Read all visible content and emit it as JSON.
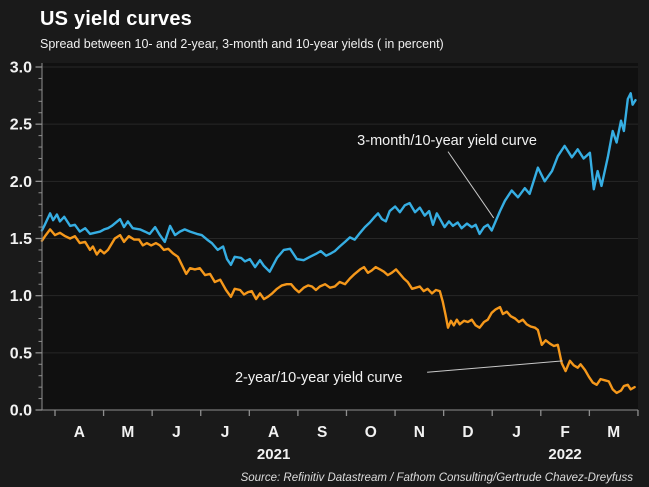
{
  "header": {
    "title": "US yield curves",
    "subtitle": "Spread between 10- and 2-year, 3-month and 10-year yields ( in percent)"
  },
  "source": "Source: Refinitiv Datastream / Fathom Consulting/Gertrude Chavez-Dreyfuss",
  "colors": {
    "background": "#1a1a1a",
    "plot_background": "#101010",
    "blue_line": "#36aee3",
    "orange_line": "#f5981b",
    "axis": "#8f8f8f",
    "grid": "#272727",
    "text": "#f2f2f2",
    "leader_line": "#c9c9c9"
  },
  "chart_data": {
    "type": "line",
    "title": "US yield curves",
    "subtitle": "Spread between 10- and 2-year, 3-month and 10-year yields ( in percent)",
    "ylabel": "percent",
    "ylim": [
      0.0,
      3.0
    ],
    "ytick_labels": [
      "0.0",
      "0.5",
      "1.0",
      "1.5",
      "2.0",
      "2.5",
      "3.0"
    ],
    "ytick_values": [
      0.0,
      0.5,
      1.0,
      1.5,
      2.0,
      2.5,
      3.0
    ],
    "grid": "horizontal-faint",
    "legend_position": "inline-annotations",
    "x_axis": {
      "note": "x unit = months since 2021-04-01, data spans late Mar 2021 to mid Mar 2022",
      "month_labels": [
        "A",
        "M",
        "J",
        "J",
        "A",
        "S",
        "O",
        "N",
        "D",
        "J",
        "F",
        "M"
      ],
      "month_label_positions": [
        0.5,
        1.5,
        2.5,
        3.5,
        4.5,
        5.5,
        6.5,
        7.5,
        8.5,
        9.5,
        10.5,
        11.5
      ],
      "year_labels": [
        {
          "text": "2021",
          "m": 4.5
        },
        {
          "text": "2022",
          "m": 10.5
        }
      ],
      "xlim": [
        -0.27,
        12
      ]
    },
    "series": [
      {
        "name": "3-month/10-year yield curve",
        "color": "#36aee3",
        "points": [
          [
            -0.27,
            1.57
          ],
          [
            -0.21,
            1.62
          ],
          [
            -0.1,
            1.72
          ],
          [
            -0.04,
            1.66
          ],
          [
            0.04,
            1.71
          ],
          [
            0.1,
            1.65
          ],
          [
            0.19,
            1.69
          ],
          [
            0.31,
            1.61
          ],
          [
            0.41,
            1.62
          ],
          [
            0.51,
            1.56
          ],
          [
            0.62,
            1.59
          ],
          [
            0.72,
            1.54
          ],
          [
            0.82,
            1.55
          ],
          [
            0.93,
            1.56
          ],
          [
            1.01,
            1.58
          ],
          [
            1.09,
            1.59
          ],
          [
            1.17,
            1.61
          ],
          [
            1.34,
            1.67
          ],
          [
            1.42,
            1.6
          ],
          [
            1.5,
            1.65
          ],
          [
            1.6,
            1.59
          ],
          [
            1.75,
            1.58
          ],
          [
            1.85,
            1.56
          ],
          [
            1.95,
            1.54
          ],
          [
            2.06,
            1.6
          ],
          [
            2.16,
            1.53
          ],
          [
            2.26,
            1.47
          ],
          [
            2.37,
            1.61
          ],
          [
            2.47,
            1.53
          ],
          [
            2.57,
            1.56
          ],
          [
            2.67,
            1.58
          ],
          [
            2.78,
            1.56
          ],
          [
            2.92,
            1.54
          ],
          [
            3.02,
            1.53
          ],
          [
            3.13,
            1.49
          ],
          [
            3.23,
            1.46
          ],
          [
            3.35,
            1.4
          ],
          [
            3.46,
            1.43
          ],
          [
            3.54,
            1.32
          ],
          [
            3.62,
            1.27
          ],
          [
            3.7,
            1.34
          ],
          [
            3.83,
            1.33
          ],
          [
            3.91,
            1.3
          ],
          [
            4.01,
            1.32
          ],
          [
            4.12,
            1.25
          ],
          [
            4.22,
            1.31
          ],
          [
            4.3,
            1.26
          ],
          [
            4.42,
            1.21
          ],
          [
            4.57,
            1.33
          ],
          [
            4.71,
            1.4
          ],
          [
            4.84,
            1.41
          ],
          [
            4.98,
            1.32
          ],
          [
            5.12,
            1.31
          ],
          [
            5.25,
            1.34
          ],
          [
            5.39,
            1.37
          ],
          [
            5.47,
            1.39
          ],
          [
            5.58,
            1.35
          ],
          [
            5.68,
            1.37
          ],
          [
            5.76,
            1.39
          ],
          [
            5.86,
            1.43
          ],
          [
            5.97,
            1.47
          ],
          [
            6.07,
            1.51
          ],
          [
            6.17,
            1.49
          ],
          [
            6.28,
            1.55
          ],
          [
            6.38,
            1.6
          ],
          [
            6.48,
            1.64
          ],
          [
            6.58,
            1.69
          ],
          [
            6.65,
            1.72
          ],
          [
            6.73,
            1.67
          ],
          [
            6.81,
            1.65
          ],
          [
            6.89,
            1.74
          ],
          [
            7,
            1.78
          ],
          [
            7.1,
            1.73
          ],
          [
            7.2,
            1.79
          ],
          [
            7.3,
            1.81
          ],
          [
            7.41,
            1.73
          ],
          [
            7.51,
            1.77
          ],
          [
            7.61,
            1.7
          ],
          [
            7.7,
            1.74
          ],
          [
            7.78,
            1.62
          ],
          [
            7.86,
            1.72
          ],
          [
            7.94,
            1.66
          ],
          [
            8.02,
            1.6
          ],
          [
            8.11,
            1.65
          ],
          [
            8.19,
            1.61
          ],
          [
            8.29,
            1.64
          ],
          [
            8.37,
            1.59
          ],
          [
            8.48,
            1.63
          ],
          [
            8.58,
            1.6
          ],
          [
            8.66,
            1.62
          ],
          [
            8.74,
            1.54
          ],
          [
            8.83,
            1.6
          ],
          [
            8.91,
            1.62
          ],
          [
            8.99,
            1.57
          ],
          [
            9.07,
            1.65
          ],
          [
            9.16,
            1.74
          ],
          [
            9.26,
            1.83
          ],
          [
            9.4,
            1.92
          ],
          [
            9.53,
            1.86
          ],
          [
            9.67,
            1.94
          ],
          [
            9.77,
            1.89
          ],
          [
            9.94,
            2.12
          ],
          [
            10.08,
            2
          ],
          [
            10.23,
            2.09
          ],
          [
            10.35,
            2.22
          ],
          [
            10.49,
            2.31
          ],
          [
            10.64,
            2.21
          ],
          [
            10.76,
            2.28
          ],
          [
            10.88,
            2.2
          ],
          [
            11.01,
            2.25
          ],
          [
            11.09,
            1.93
          ],
          [
            11.17,
            2.09
          ],
          [
            11.25,
            1.96
          ],
          [
            11.38,
            2.21
          ],
          [
            11.48,
            2.44
          ],
          [
            11.56,
            2.34
          ],
          [
            11.65,
            2.53
          ],
          [
            11.71,
            2.44
          ],
          [
            11.79,
            2.72
          ],
          [
            11.85,
            2.77
          ],
          [
            11.89,
            2.67
          ],
          [
            11.95,
            2.71
          ]
        ]
      },
      {
        "name": "2-year/10-year yield curve",
        "color": "#f5981b",
        "points": [
          [
            -0.27,
            1.48
          ],
          [
            -0.19,
            1.53
          ],
          [
            -0.1,
            1.58
          ],
          [
            0,
            1.53
          ],
          [
            0.1,
            1.55
          ],
          [
            0.21,
            1.52
          ],
          [
            0.31,
            1.5
          ],
          [
            0.41,
            1.52
          ],
          [
            0.51,
            1.46
          ],
          [
            0.62,
            1.47
          ],
          [
            0.72,
            1.4
          ],
          [
            0.78,
            1.43
          ],
          [
            0.86,
            1.36
          ],
          [
            0.93,
            1.4
          ],
          [
            1.01,
            1.37
          ],
          [
            1.09,
            1.4
          ],
          [
            1.23,
            1.5
          ],
          [
            1.34,
            1.53
          ],
          [
            1.42,
            1.47
          ],
          [
            1.52,
            1.52
          ],
          [
            1.63,
            1.49
          ],
          [
            1.73,
            1.49
          ],
          [
            1.81,
            1.44
          ],
          [
            1.89,
            1.46
          ],
          [
            1.98,
            1.44
          ],
          [
            2.08,
            1.46
          ],
          [
            2.16,
            1.44
          ],
          [
            2.24,
            1.4
          ],
          [
            2.33,
            1.41
          ],
          [
            2.43,
            1.37
          ],
          [
            2.53,
            1.34
          ],
          [
            2.61,
            1.27
          ],
          [
            2.7,
            1.19
          ],
          [
            2.78,
            1.24
          ],
          [
            2.88,
            1.23
          ],
          [
            2.98,
            1.24
          ],
          [
            3.09,
            1.18
          ],
          [
            3.19,
            1.19
          ],
          [
            3.29,
            1.12
          ],
          [
            3.4,
            1.14
          ],
          [
            3.52,
            1.05
          ],
          [
            3.62,
            0.99
          ],
          [
            3.7,
            1.06
          ],
          [
            3.81,
            1.05
          ],
          [
            3.89,
            1.01
          ],
          [
            3.97,
            1.03
          ],
          [
            4.05,
            1.04
          ],
          [
            4.14,
            0.97
          ],
          [
            4.22,
            1.02
          ],
          [
            4.3,
            0.97
          ],
          [
            4.38,
            0.99
          ],
          [
            4.47,
            1.02
          ],
          [
            4.57,
            1.06
          ],
          [
            4.67,
            1.09
          ],
          [
            4.77,
            1.1
          ],
          [
            4.86,
            1.1
          ],
          [
            4.94,
            1.06
          ],
          [
            5.02,
            1.03
          ],
          [
            5.12,
            1.07
          ],
          [
            5.21,
            1.09
          ],
          [
            5.29,
            1.08
          ],
          [
            5.37,
            1.05
          ],
          [
            5.45,
            1.08
          ],
          [
            5.56,
            1.1
          ],
          [
            5.66,
            1.07
          ],
          [
            5.76,
            1.08
          ],
          [
            5.86,
            1.12
          ],
          [
            5.97,
            1.1
          ],
          [
            6.07,
            1.15
          ],
          [
            6.17,
            1.19
          ],
          [
            6.28,
            1.23
          ],
          [
            6.36,
            1.25
          ],
          [
            6.44,
            1.2
          ],
          [
            6.52,
            1.22
          ],
          [
            6.6,
            1.25
          ],
          [
            6.69,
            1.23
          ],
          [
            6.77,
            1.21
          ],
          [
            6.85,
            1.18
          ],
          [
            6.93,
            1.2
          ],
          [
            7.02,
            1.23
          ],
          [
            7.1,
            1.19
          ],
          [
            7.18,
            1.15
          ],
          [
            7.26,
            1.12
          ],
          [
            7.35,
            1.06
          ],
          [
            7.43,
            1.07
          ],
          [
            7.51,
            1.08
          ],
          [
            7.59,
            1.04
          ],
          [
            7.67,
            1.06
          ],
          [
            7.76,
            1.02
          ],
          [
            7.84,
            1.05
          ],
          [
            7.92,
            1.04
          ],
          [
            7.98,
            0.95
          ],
          [
            8.04,
            0.83
          ],
          [
            8.09,
            0.72
          ],
          [
            8.15,
            0.78
          ],
          [
            8.21,
            0.74
          ],
          [
            8.27,
            0.79
          ],
          [
            8.33,
            0.75
          ],
          [
            8.42,
            0.78
          ],
          [
            8.5,
            0.77
          ],
          [
            8.58,
            0.79
          ],
          [
            8.66,
            0.74
          ],
          [
            8.74,
            0.72
          ],
          [
            8.83,
            0.77
          ],
          [
            8.91,
            0.79
          ],
          [
            8.99,
            0.85
          ],
          [
            9.07,
            0.88
          ],
          [
            9.16,
            0.9
          ],
          [
            9.22,
            0.84
          ],
          [
            9.3,
            0.86
          ],
          [
            9.38,
            0.82
          ],
          [
            9.47,
            0.8
          ],
          [
            9.55,
            0.77
          ],
          [
            9.63,
            0.79
          ],
          [
            9.71,
            0.75
          ],
          [
            9.79,
            0.73
          ],
          [
            9.88,
            0.72
          ],
          [
            9.94,
            0.7
          ],
          [
            10.02,
            0.57
          ],
          [
            10.1,
            0.61
          ],
          [
            10.19,
            0.58
          ],
          [
            10.27,
            0.56
          ],
          [
            10.35,
            0.57
          ],
          [
            10.43,
            0.41
          ],
          [
            10.51,
            0.34
          ],
          [
            10.6,
            0.43
          ],
          [
            10.68,
            0.39
          ],
          [
            10.76,
            0.37
          ],
          [
            10.82,
            0.4
          ],
          [
            10.91,
            0.35
          ],
          [
            10.99,
            0.29
          ],
          [
            11.07,
            0.24
          ],
          [
            11.15,
            0.22
          ],
          [
            11.23,
            0.27
          ],
          [
            11.32,
            0.26
          ],
          [
            11.4,
            0.25
          ],
          [
            11.48,
            0.18
          ],
          [
            11.56,
            0.15
          ],
          [
            11.65,
            0.17
          ],
          [
            11.71,
            0.21
          ],
          [
            11.79,
            0.22
          ],
          [
            11.85,
            0.18
          ],
          [
            11.93,
            0.2
          ]
        ]
      }
    ],
    "annotations": [
      {
        "text": "3-month/10-year yield curve",
        "label_m": 8.07,
        "label_v": 2.36,
        "line": [
          [
            8.09,
            2.26
          ],
          [
            9.03,
            1.68
          ]
        ]
      },
      {
        "text": "2-year/10-year yield curve",
        "label_m": 5.43,
        "label_v": 0.29,
        "line": [
          [
            7.66,
            0.33
          ],
          [
            10.45,
            0.43
          ]
        ]
      }
    ]
  }
}
